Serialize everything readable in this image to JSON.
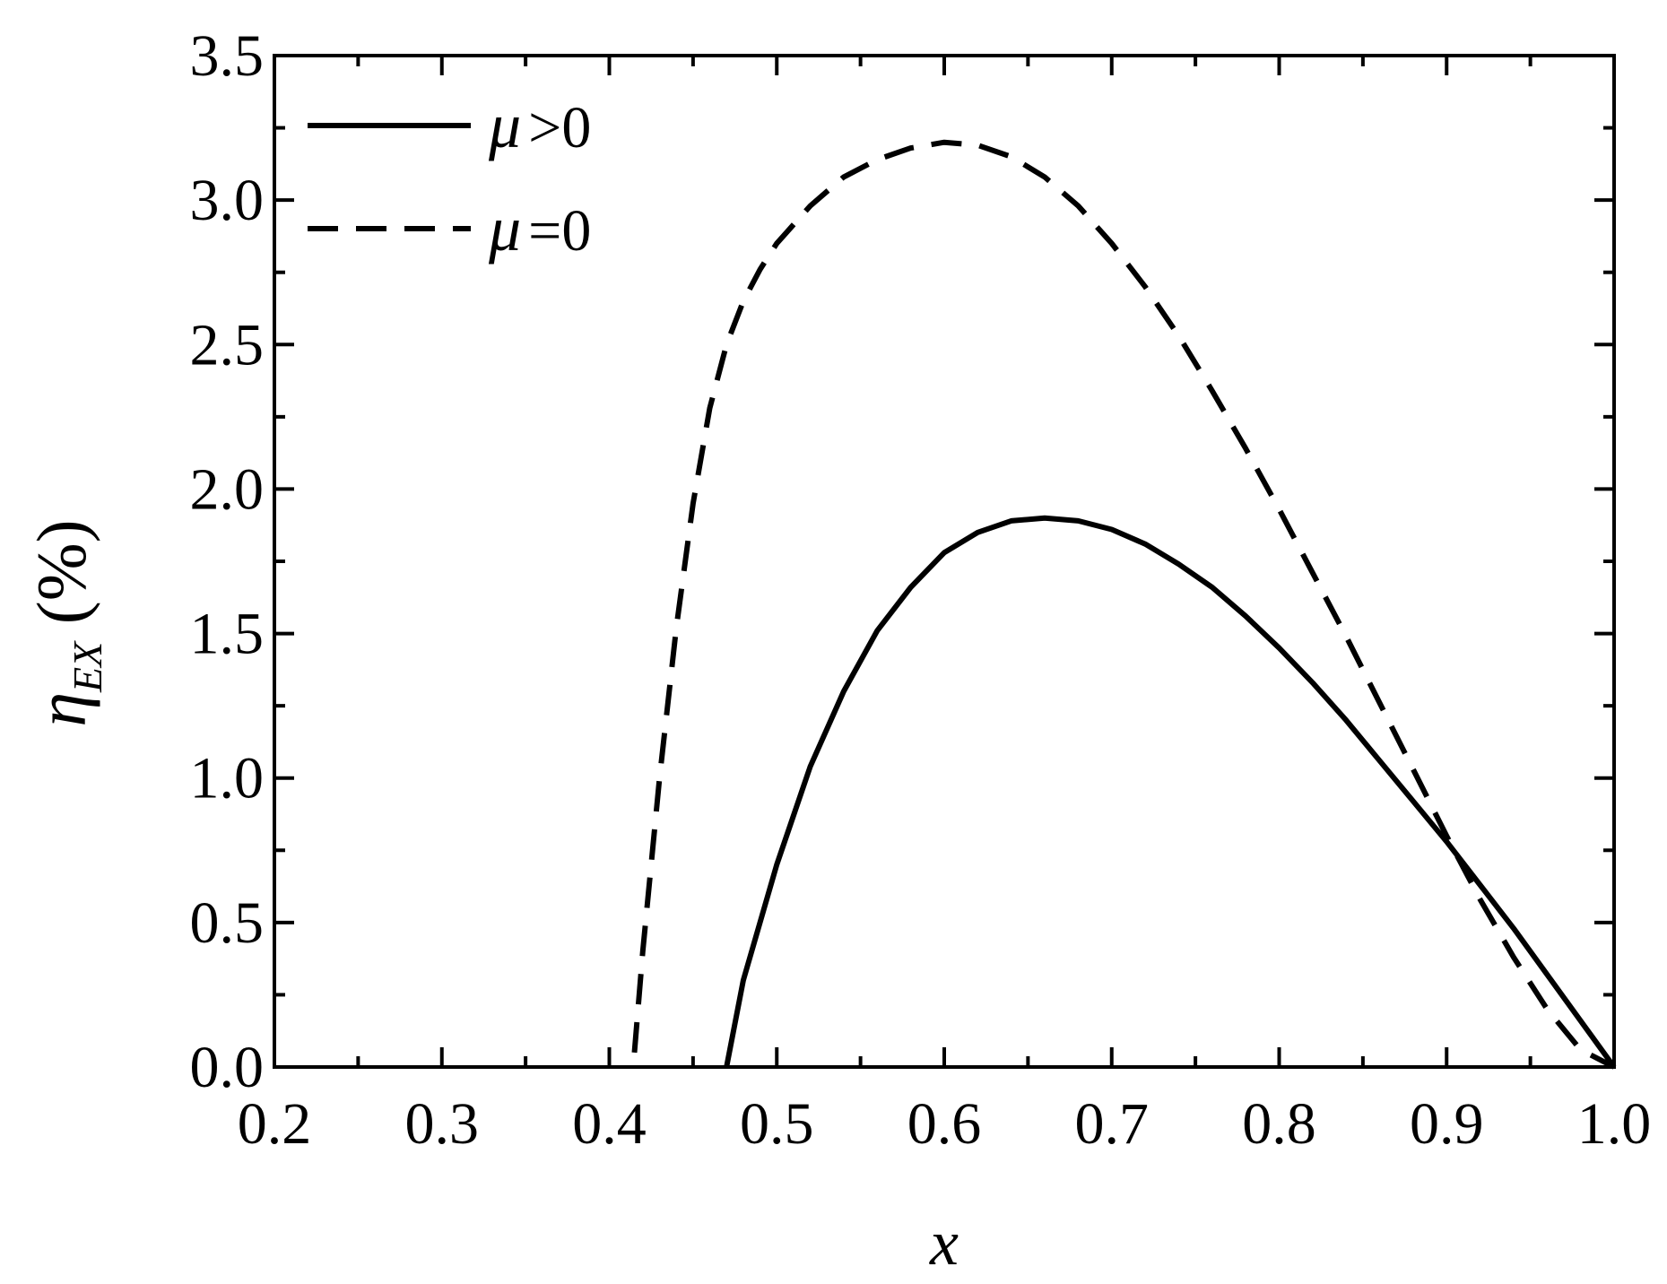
{
  "chart_data": {
    "type": "line",
    "title": "",
    "xlabel": "x",
    "ylabel": {
      "symbol": "η",
      "subscript": "EX",
      "unit": "(%)"
    },
    "xlim": [
      0.2,
      1.0
    ],
    "ylim": [
      0.0,
      3.5
    ],
    "x_ticks": [
      "0.2",
      "0.3",
      "0.4",
      "0.5",
      "0.6",
      "0.7",
      "0.8",
      "0.9",
      "1.0"
    ],
    "y_ticks": [
      "0.0",
      "0.5",
      "1.0",
      "1.5",
      "2.0",
      "2.5",
      "3.0",
      "3.5"
    ],
    "grid": false,
    "legend_position": "top-left",
    "series": [
      {
        "name": "μ >0",
        "line_style": "solid",
        "color": "#000000",
        "x": [
          0.47,
          0.48,
          0.5,
          0.52,
          0.54,
          0.56,
          0.58,
          0.6,
          0.62,
          0.64,
          0.66,
          0.68,
          0.7,
          0.72,
          0.74,
          0.76,
          0.78,
          0.8,
          0.82,
          0.84,
          0.86,
          0.88,
          0.9,
          0.92,
          0.94,
          0.96,
          0.98,
          1.0
        ],
        "y": [
          0.0,
          0.3,
          0.7,
          1.04,
          1.3,
          1.51,
          1.66,
          1.78,
          1.85,
          1.89,
          1.9,
          1.89,
          1.86,
          1.81,
          1.74,
          1.66,
          1.56,
          1.45,
          1.33,
          1.2,
          1.06,
          0.92,
          0.78,
          0.63,
          0.48,
          0.32,
          0.16,
          0.0
        ]
      },
      {
        "name": "μ =0",
        "line_style": "dashed",
        "color": "#000000",
        "x": [
          0.415,
          0.42,
          0.43,
          0.44,
          0.45,
          0.46,
          0.47,
          0.48,
          0.49,
          0.5,
          0.52,
          0.54,
          0.56,
          0.58,
          0.6,
          0.62,
          0.64,
          0.66,
          0.68,
          0.7,
          0.72,
          0.74,
          0.76,
          0.78,
          0.8,
          0.82,
          0.84,
          0.86,
          0.88,
          0.9,
          0.92,
          0.94,
          0.96,
          0.98,
          1.0
        ],
        "y": [
          0.05,
          0.4,
          1.0,
          1.52,
          1.95,
          2.28,
          2.5,
          2.65,
          2.76,
          2.85,
          2.98,
          3.08,
          3.14,
          3.18,
          3.2,
          3.19,
          3.15,
          3.08,
          2.98,
          2.85,
          2.7,
          2.53,
          2.34,
          2.14,
          1.93,
          1.71,
          1.49,
          1.26,
          1.03,
          0.8,
          0.58,
          0.38,
          0.2,
          0.06,
          0.0
        ]
      }
    ]
  }
}
